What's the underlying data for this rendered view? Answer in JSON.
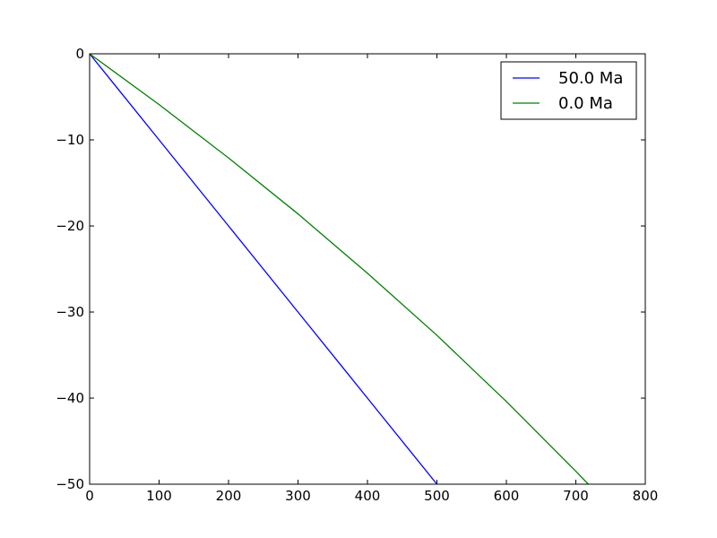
{
  "chart_data": {
    "type": "line",
    "title": "",
    "xlabel": "",
    "ylabel": "",
    "xlim": [
      0,
      800
    ],
    "ylim": [
      -50,
      0
    ],
    "xticks": [
      0,
      100,
      200,
      300,
      400,
      500,
      600,
      700,
      800
    ],
    "yticks": [
      0,
      -10,
      -20,
      -30,
      -40,
      -50
    ],
    "xtick_labels": [
      "0",
      "100",
      "200",
      "300",
      "400",
      "500",
      "600",
      "700",
      "800"
    ],
    "ytick_labels": [
      "0",
      "−10",
      "−20",
      "−30",
      "−40",
      "−50"
    ],
    "grid": false,
    "legend_position": "top-right",
    "series": [
      {
        "name": "50.0 Ma",
        "color": "#0000ff",
        "x": [
          0,
          100,
          200,
          300,
          400,
          500
        ],
        "y": [
          0,
          -10,
          -20,
          -30,
          -40,
          -50
        ]
      },
      {
        "name": "0.0 Ma",
        "color": "#008000",
        "x": [
          0,
          100,
          200,
          300,
          400,
          500,
          600,
          700,
          718
        ],
        "y": [
          0,
          -5.9,
          -12.1,
          -18.6,
          -25.5,
          -32.7,
          -40.4,
          -48.5,
          -50
        ]
      }
    ]
  }
}
